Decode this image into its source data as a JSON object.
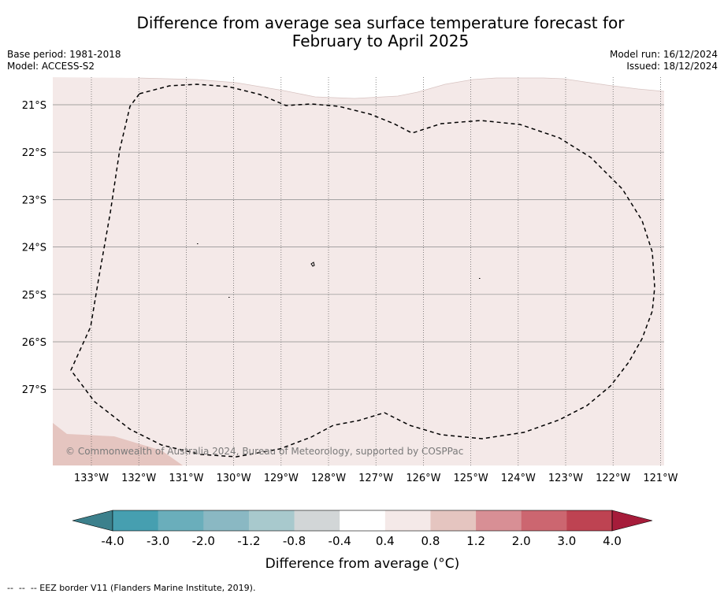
{
  "title_line1": "Difference from average sea surface temperature forecast for",
  "title_line2": "February to April 2025",
  "base_period": "Base period: 1981-2018",
  "model": "Model: ACCESS-S2",
  "model_run": "Model run: 16/12/2024",
  "issued": "Issued: 18/12/2024",
  "copyright": "© Commonwealth of Australia 2024, Bureau of Meteorology, supported by COSPPac",
  "map": {
    "lon_labels": [
      "133°W",
      "132°W",
      "131°W",
      "130°W",
      "129°W",
      "128°W",
      "127°W",
      "126°W",
      "125°W",
      "124°W",
      "123°W",
      "122°W",
      "121°W"
    ],
    "lat_labels": [
      "21°S",
      "22°S",
      "23°S",
      "24°S",
      "25°S",
      "26°S",
      "27°S"
    ],
    "background_color": "#f4e9e8",
    "warm_patch_color": "#e5c5c0",
    "eez_line_style": "dashed"
  },
  "colorbar": {
    "title": "Difference from average (°C)",
    "tick_labels": [
      "-4.0",
      "-3.0",
      "-2.0",
      "-1.2",
      "-0.8",
      "-0.4",
      "0.4",
      "0.8",
      "1.2",
      "2.0",
      "3.0",
      "4.0"
    ],
    "colors": [
      "#3c808c",
      "#469fb0",
      "#6aaebb",
      "#8ab8c3",
      "#a8c9cd",
      "#d2d6d7",
      "#ffffff",
      "#f4e9e8",
      "#e5c5c0",
      "#d88f95",
      "#cc6670",
      "#be4352",
      "#a61c3a"
    ]
  },
  "footnote": "--  --  -- EEZ border V11 (Flanders Marine Institute, 2019)."
}
